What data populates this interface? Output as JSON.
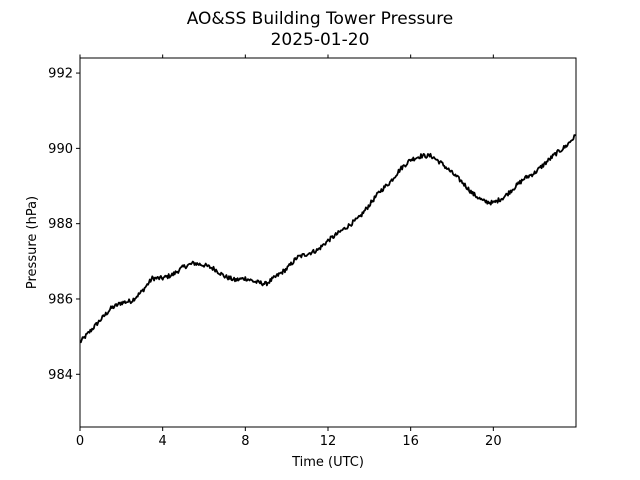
{
  "chart_data": {
    "type": "line",
    "title": "AO&SS Building Tower Pressure",
    "subtitle": "2025-01-20",
    "xlabel": "Time (UTC)",
    "ylabel": "Pressure (hPa)",
    "xlim": [
      0,
      24
    ],
    "ylim": [
      982.6,
      992.4
    ],
    "xticks": [
      0,
      4,
      8,
      12,
      16,
      20
    ],
    "yticks": [
      984,
      986,
      988,
      990,
      992
    ],
    "grid": false,
    "line_color": "#000000",
    "series": [
      {
        "x": [
          0,
          0.5,
          1,
          1.5,
          2,
          2.5,
          3,
          3.5,
          4,
          4.5,
          5,
          5.5,
          6,
          6.5,
          7,
          7.5,
          8,
          8.5,
          9,
          9.5,
          10,
          10.5,
          11,
          11.5,
          12,
          12.5,
          13,
          13.5,
          14,
          14.5,
          15,
          15.5,
          16,
          16.5,
          17,
          17.5,
          18,
          18.5,
          19,
          19.5,
          20,
          20.5,
          21,
          21.5,
          22,
          22.5,
          23,
          23.5,
          24
        ],
        "y": [
          984.85,
          985.15,
          985.45,
          985.75,
          985.9,
          985.95,
          986.2,
          986.55,
          986.55,
          986.65,
          986.85,
          986.95,
          986.9,
          986.8,
          986.6,
          986.5,
          986.55,
          986.45,
          986.4,
          986.6,
          986.8,
          987.1,
          987.2,
          987.3,
          987.55,
          987.75,
          987.95,
          988.15,
          988.5,
          988.85,
          989.1,
          989.45,
          989.7,
          989.8,
          989.8,
          989.6,
          989.35,
          989.1,
          988.8,
          988.6,
          988.55,
          988.7,
          988.95,
          989.2,
          989.35,
          989.6,
          989.85,
          990.05,
          990.35
        ]
      }
    ]
  }
}
